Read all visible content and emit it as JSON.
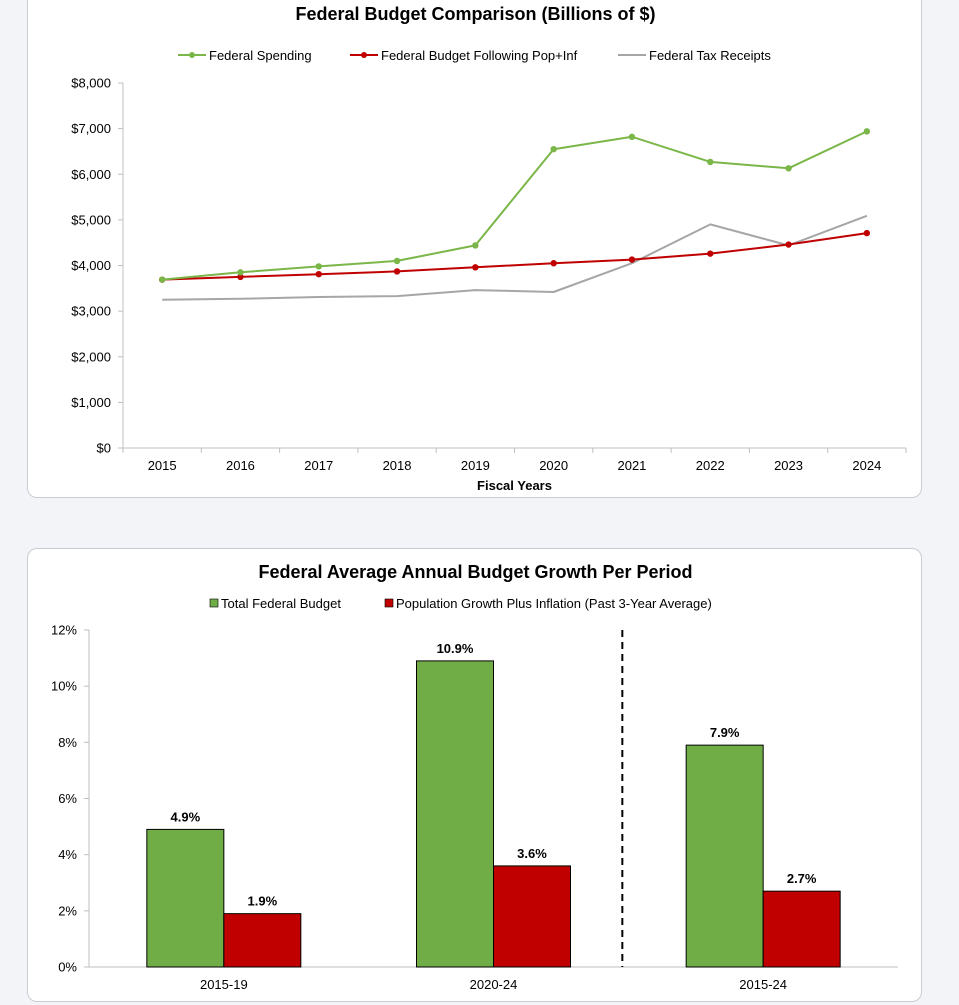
{
  "chart_data": [
    {
      "type": "line",
      "title": "Federal Budget Comparison (Billions of $)",
      "xlabel": "Fiscal Years",
      "ylabel": "",
      "ylim": [
        0,
        8000
      ],
      "yticks": [
        "$0",
        "$1,000",
        "$2,000",
        "$3,000",
        "$4,000",
        "$5,000",
        "$6,000",
        "$7,000",
        "$8,000"
      ],
      "categories": [
        "2015",
        "2016",
        "2017",
        "2018",
        "2019",
        "2020",
        "2021",
        "2022",
        "2023",
        "2024"
      ],
      "series": [
        {
          "name": "Federal Spending",
          "color": "#7ab648",
          "markers": true,
          "values": [
            3690,
            3850,
            3980,
            4100,
            4440,
            6550,
            6820,
            6270,
            6130,
            6940
          ]
        },
        {
          "name": "Federal Budget Following Pop+Inf",
          "color": "#c00000",
          "markers": true,
          "values": [
            3690,
            3750,
            3810,
            3870,
            3960,
            4050,
            4130,
            4260,
            4460,
            4710
          ]
        },
        {
          "name": "Federal Tax Receipts",
          "color": "#a6a6a6",
          "markers": false,
          "values": [
            3250,
            3270,
            3310,
            3330,
            3460,
            3420,
            4050,
            4900,
            4440,
            5090
          ]
        }
      ],
      "legend_position": "top"
    },
    {
      "type": "bar",
      "title": "Federal Average Annual Budget Growth Per Period",
      "xlabel": "",
      "ylabel": "",
      "ylim": [
        0,
        12
      ],
      "yticks": [
        "0%",
        "2%",
        "4%",
        "6%",
        "8%",
        "10%",
        "12%"
      ],
      "categories": [
        "2015-19",
        "2020-24",
        "2015-24"
      ],
      "series": [
        {
          "name": "Total Federal Budget",
          "color": "#70ad47",
          "values": [
            4.9,
            10.9,
            7.9
          ],
          "labels": [
            "4.9%",
            "10.9%",
            "7.9%"
          ]
        },
        {
          "name": "Population Growth Plus Inflation (Past 3-Year Average)",
          "color": "#c00000",
          "values": [
            1.9,
            3.6,
            2.7
          ],
          "labels": [
            "1.9%",
            "3.6%",
            "2.7%"
          ]
        }
      ],
      "divider_after_category": 1,
      "legend_position": "top"
    }
  ]
}
